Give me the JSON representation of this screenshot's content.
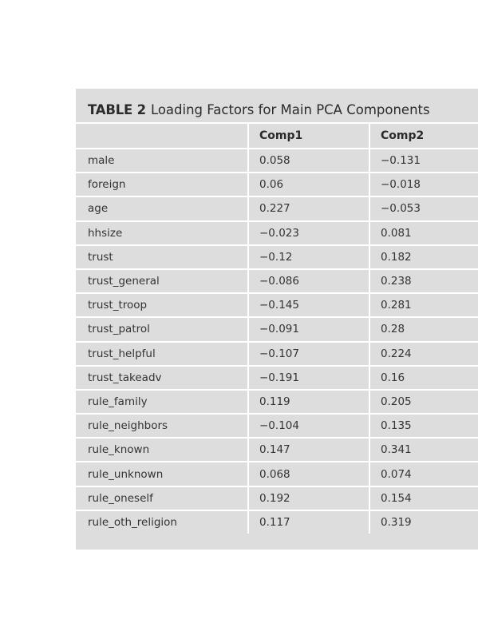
{
  "table": {
    "label": "TABLE 2",
    "caption": "Loading Factors for Main PCA Components",
    "columns": [
      "",
      "Comp1",
      "Comp2"
    ],
    "rows": [
      {
        "variable": "male",
        "comp1": "0.058",
        "comp2": "−0.131"
      },
      {
        "variable": "foreign",
        "comp1": "0.06",
        "comp2": "−0.018"
      },
      {
        "variable": "age",
        "comp1": "0.227",
        "comp2": "−0.053"
      },
      {
        "variable": "hhsize",
        "comp1": "−0.023",
        "comp2": "0.081"
      },
      {
        "variable": "trust",
        "comp1": "−0.12",
        "comp2": "0.182"
      },
      {
        "variable": "trust_general",
        "comp1": "−0.086",
        "comp2": "0.238"
      },
      {
        "variable": "trust_troop",
        "comp1": "−0.145",
        "comp2": "0.281"
      },
      {
        "variable": "trust_patrol",
        "comp1": "−0.091",
        "comp2": "0.28"
      },
      {
        "variable": "trust_helpful",
        "comp1": "−0.107",
        "comp2": "0.224"
      },
      {
        "variable": "trust_takeadv",
        "comp1": "−0.191",
        "comp2": "0.16"
      },
      {
        "variable": "rule_family",
        "comp1": "0.119",
        "comp2": "0.205"
      },
      {
        "variable": "rule_neighbors",
        "comp1": "−0.104",
        "comp2": "0.135"
      },
      {
        "variable": "rule_known",
        "comp1": "0.147",
        "comp2": "0.341"
      },
      {
        "variable": "rule_unknown",
        "comp1": "0.068",
        "comp2": "0.074"
      },
      {
        "variable": "rule_oneself",
        "comp1": "0.192",
        "comp2": "0.154"
      },
      {
        "variable": "rule_oth_religion",
        "comp1": "0.117",
        "comp2": "0.319"
      }
    ]
  },
  "colors": {
    "panel": "#dedddd",
    "rule": "#ffffff",
    "text": "#2b2b2b"
  }
}
